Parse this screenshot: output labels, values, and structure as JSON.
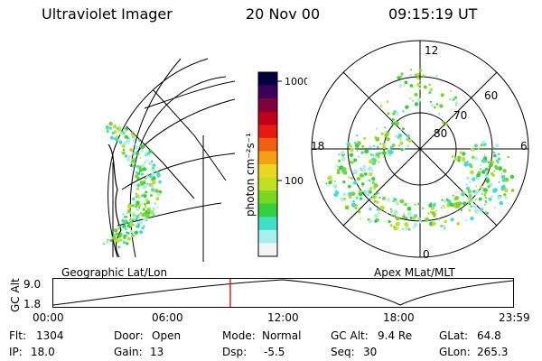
{
  "header": {
    "instrument": "Ultraviolet Imager",
    "date": "20 Nov 00",
    "time": "09:15:19 UT"
  },
  "colorbar": {
    "label": "photon cm⁻²s⁻¹",
    "ticks": [
      "1000",
      "100"
    ],
    "colors": [
      "#000040",
      "#3a005a",
      "#80003a",
      "#c00018",
      "#e81a10",
      "#f06010",
      "#f4a010",
      "#e8d820",
      "#c0e020",
      "#78d820",
      "#30d040",
      "#40e0c8",
      "#a8f0f0",
      "#f4f4f4"
    ]
  },
  "panels": {
    "left_caption": "Geographic Lat/Lon",
    "right_caption": "Apex MLat/MLT",
    "polar_labels": {
      "mlt_12": "12",
      "mlt_18": "18",
      "mlt_6": "6",
      "mlt_0": "0",
      "lat_60": "60",
      "lat_70": "70",
      "lat_80": "80"
    }
  },
  "orbit": {
    "axis_label": "GC Alt",
    "y_max": "9.0",
    "y_min": "1.8",
    "x_ticks": [
      "00:00",
      "06:00",
      "12:00",
      "18:00",
      "23:59"
    ],
    "current_time_fraction": 0.385
  },
  "status": {
    "flt_label": "Flt:",
    "flt_value": "1304",
    "ip_label": "IP:",
    "ip_value": "18.0",
    "door_label": "Door:",
    "door_value": "Open",
    "gain_label": "Gain:",
    "gain_value": "13",
    "mode_label": "Mode:",
    "mode_value": "Normal",
    "dsp_label": "Dsp:",
    "dsp_value": "-5.5",
    "gcalt_label": "GC Alt:",
    "gcalt_value": "9.4 Re",
    "seq_label": "Seq:",
    "seq_value": "30",
    "glat_label": "GLat:",
    "glat_value": "64.8",
    "glon_label": "GLon:",
    "glon_value": "265.3"
  }
}
